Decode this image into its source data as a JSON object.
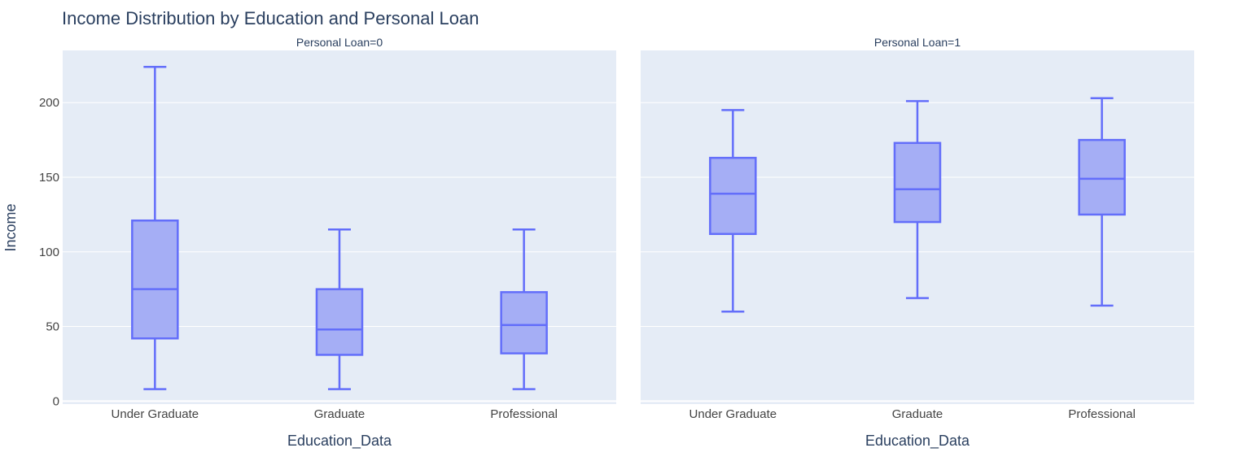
{
  "chart_data": {
    "type": "box",
    "title": "Income Distribution by Education and Personal Loan",
    "xlabel": "Education_Data",
    "ylabel": "Income",
    "categories": [
      "Under Graduate",
      "Graduate",
      "Professional"
    ],
    "ylim": [
      -2,
      235
    ],
    "y_ticks": [
      0,
      50,
      100,
      150,
      200
    ],
    "grid": true,
    "colors": {
      "plot_bg": "#e5ecf6",
      "grid": "#ffffff",
      "box_fill": "#a5aef5",
      "box_line": "#636efa"
    },
    "facets": [
      {
        "label": "Personal Loan=0",
        "boxes": [
          {
            "category": "Under Graduate",
            "min": 8,
            "q1": 42,
            "median": 75,
            "q3": 121,
            "max": 224
          },
          {
            "category": "Graduate",
            "min": 8,
            "q1": 31,
            "median": 48,
            "q3": 75,
            "max": 115
          },
          {
            "category": "Professional",
            "min": 8,
            "q1": 32,
            "median": 51,
            "q3": 73,
            "max": 115
          }
        ]
      },
      {
        "label": "Personal Loan=1",
        "boxes": [
          {
            "category": "Under Graduate",
            "min": 60,
            "q1": 112,
            "median": 139,
            "q3": 163,
            "max": 195
          },
          {
            "category": "Graduate",
            "min": 69,
            "q1": 120,
            "median": 142,
            "q3": 173,
            "max": 201
          },
          {
            "category": "Professional",
            "min": 64,
            "q1": 125,
            "median": 149,
            "q3": 175,
            "max": 203
          }
        ]
      }
    ]
  }
}
